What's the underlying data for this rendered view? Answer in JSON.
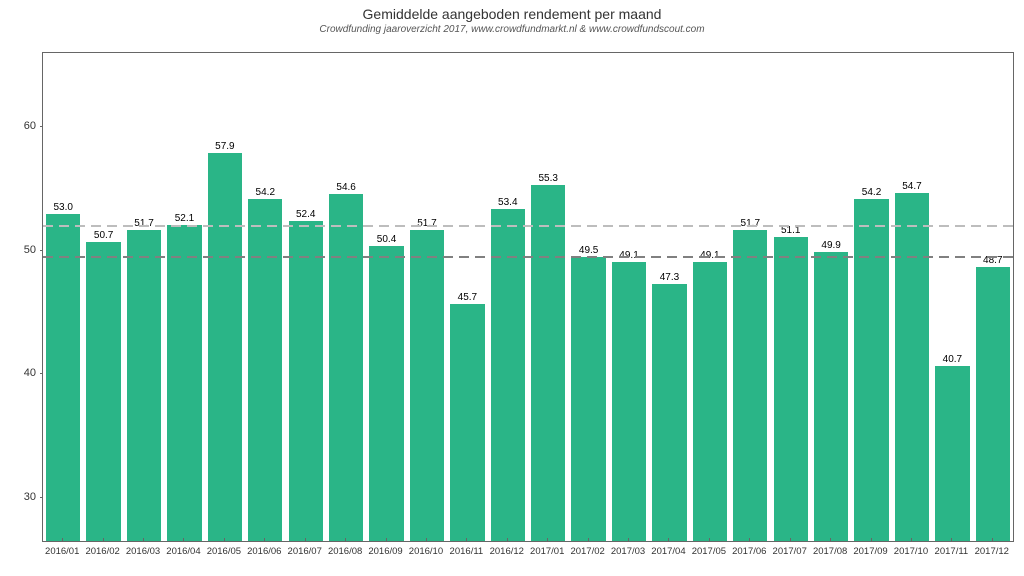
{
  "chart": {
    "type": "bar",
    "title": "Gemiddelde aangeboden rendement per maand",
    "subtitle": "Crowdfunding jaaroverzicht 2017, www.crowdfundmarkt.nl & www.crowdfundscout.com",
    "title_fontsize": 14,
    "subtitle_fontsize": 10,
    "subtitle_style": "italic",
    "background_color": "#ffffff",
    "plot_border_color": "#666666",
    "label_fontsize": 10,
    "axis_fontsize": 11,
    "xaxis_fontsize": 9.5,
    "ylim": [
      26.5,
      66
    ],
    "yticks": [
      30,
      40,
      50,
      60
    ],
    "bar_color": "#2ab587",
    "bar_width": 0.85,
    "value_decimals": 1,
    "reference_lines": [
      {
        "y": 52.0,
        "color": "#bdbdbd",
        "dash_on": 10,
        "dash_off": 6,
        "width": 2
      },
      {
        "y": 49.5,
        "color": "#808080",
        "dash_on": 10,
        "dash_off": 6,
        "width": 2
      }
    ],
    "categories": [
      "2016/01",
      "2016/02",
      "2016/03",
      "2016/04",
      "2016/05",
      "2016/06",
      "2016/07",
      "2016/08",
      "2016/09",
      "2016/10",
      "2016/11",
      "2016/12",
      "2017/01",
      "2017/02",
      "2017/03",
      "2017/04",
      "2017/05",
      "2017/06",
      "2017/07",
      "2017/08",
      "2017/09",
      "2017/10",
      "2017/11",
      "2017/12"
    ],
    "values": [
      53.0,
      50.7,
      51.7,
      52.1,
      57.9,
      54.2,
      52.4,
      54.6,
      50.4,
      51.7,
      45.7,
      53.4,
      55.3,
      49.5,
      49.1,
      47.3,
      49.1,
      51.7,
      51.1,
      49.9,
      54.2,
      54.7,
      40.7,
      48.7
    ]
  }
}
